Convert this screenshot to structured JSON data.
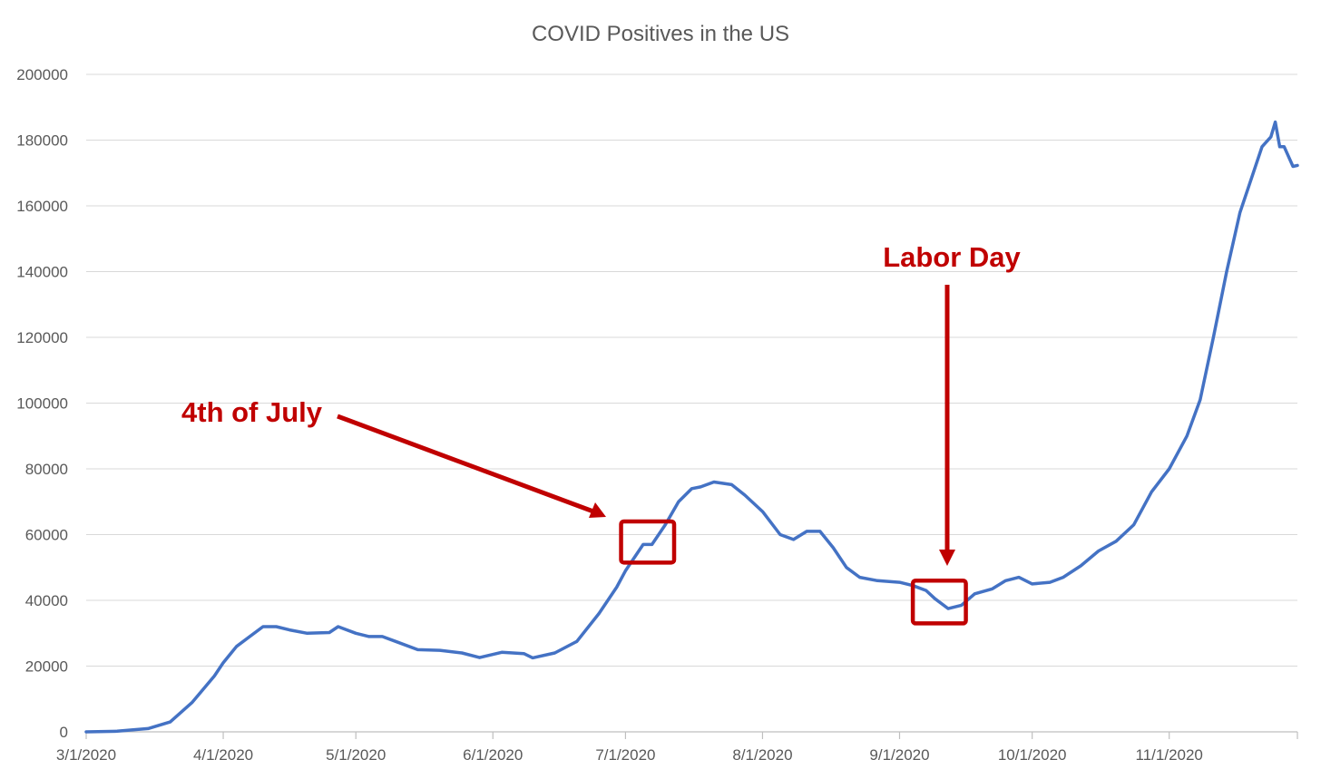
{
  "chart_data": {
    "type": "line",
    "title": "COVID Positives in the US",
    "xlabel": "",
    "ylabel": "",
    "ylim": [
      0,
      200000
    ],
    "yticks": [
      0,
      20000,
      40000,
      60000,
      80000,
      100000,
      120000,
      140000,
      160000,
      180000,
      200000
    ],
    "x_start": "3/1/2020",
    "x_end": "11/30/2020",
    "xtick_labels": [
      "3/1/2020",
      "4/1/2020",
      "5/1/2020",
      "6/1/2020",
      "7/1/2020",
      "8/1/2020",
      "9/1/2020",
      "10/1/2020",
      "11/1/2020"
    ],
    "grid": true,
    "legend": "none",
    "series_color": "#4472c4",
    "series": [
      {
        "points": [
          [
            "3/1/2020",
            0
          ],
          [
            "3/8/2020",
            200
          ],
          [
            "3/15/2020",
            1000
          ],
          [
            "3/20/2020",
            3000
          ],
          [
            "3/25/2020",
            9000
          ],
          [
            "3/30/2020",
            17000
          ],
          [
            "4/1/2020",
            21000
          ],
          [
            "4/4/2020",
            26000
          ],
          [
            "4/7/2020",
            29000
          ],
          [
            "4/10/2020",
            32000
          ],
          [
            "4/13/2020",
            32000
          ],
          [
            "4/16/2020",
            31000
          ],
          [
            "4/20/2020",
            30000
          ],
          [
            "4/25/2020",
            30200
          ],
          [
            "4/27/2020",
            32000
          ],
          [
            "5/1/2020",
            30000
          ],
          [
            "5/4/2020",
            29000
          ],
          [
            "5/7/2020",
            29000
          ],
          [
            "5/10/2020",
            27500
          ],
          [
            "5/15/2020",
            25000
          ],
          [
            "5/20/2020",
            24800
          ],
          [
            "5/25/2020",
            24000
          ],
          [
            "5/29/2020",
            22600
          ],
          [
            "6/3/2020",
            24200
          ],
          [
            "6/8/2020",
            23800
          ],
          [
            "6/10/2020",
            22500
          ],
          [
            "6/15/2020",
            24000
          ],
          [
            "6/20/2020",
            27500
          ],
          [
            "6/25/2020",
            36000
          ],
          [
            "6/29/2020",
            44000
          ],
          [
            "7/1/2020",
            49000
          ],
          [
            "7/5/2020",
            57000
          ],
          [
            "7/7/2020",
            57000
          ],
          [
            "7/10/2020",
            63000
          ],
          [
            "7/13/2020",
            70000
          ],
          [
            "7/16/2020",
            74000
          ],
          [
            "7/18/2020",
            74500
          ],
          [
            "7/21/2020",
            76000
          ],
          [
            "7/25/2020",
            75200
          ],
          [
            "7/28/2020",
            72000
          ],
          [
            "8/1/2020",
            67000
          ],
          [
            "8/5/2020",
            60000
          ],
          [
            "8/8/2020",
            58500
          ],
          [
            "8/11/2020",
            61000
          ],
          [
            "8/14/2020",
            61000
          ],
          [
            "8/17/2020",
            56000
          ],
          [
            "8/20/2020",
            50000
          ],
          [
            "8/23/2020",
            47000
          ],
          [
            "8/27/2020",
            46000
          ],
          [
            "9/1/2020",
            45500
          ],
          [
            "9/4/2020",
            44500
          ],
          [
            "9/7/2020",
            43000
          ],
          [
            "9/9/2020",
            40500
          ],
          [
            "9/12/2020",
            37500
          ],
          [
            "9/15/2020",
            38500
          ],
          [
            "9/18/2020",
            42000
          ],
          [
            "9/22/2020",
            43500
          ],
          [
            "9/25/2020",
            46000
          ],
          [
            "9/28/2020",
            47000
          ],
          [
            "10/1/2020",
            45000
          ],
          [
            "10/5/2020",
            45500
          ],
          [
            "10/8/2020",
            47000
          ],
          [
            "10/12/2020",
            50500
          ],
          [
            "10/16/2020",
            55000
          ],
          [
            "10/20/2020",
            58000
          ],
          [
            "10/24/2020",
            63000
          ],
          [
            "10/28/2020",
            73000
          ],
          [
            "11/1/2020",
            80000
          ],
          [
            "11/5/2020",
            90000
          ],
          [
            "11/8/2020",
            101000
          ],
          [
            "11/11/2020",
            120000
          ],
          [
            "11/14/2020",
            140000
          ],
          [
            "11/17/2020",
            158000
          ],
          [
            "11/20/2020",
            170000
          ],
          [
            "11/22/2020",
            178000
          ],
          [
            "11/24/2020",
            181000
          ],
          [
            "11/25/2020",
            185500
          ],
          [
            "11/26/2020",
            178000
          ],
          [
            "11/27/2020",
            178000
          ],
          [
            "11/29/2020",
            172000
          ],
          [
            "11/30/2020",
            172300
          ]
        ]
      }
    ],
    "annotation_color": "#c00000",
    "annotations": [
      {
        "text": "4th of July",
        "box": {
          "x0": "6/30/2020",
          "x1": "7/12/2020",
          "y0": 51500,
          "y1": 64000
        }
      },
      {
        "text": "Labor Day",
        "box": {
          "x0": "9/4/2020",
          "x1": "9/16/2020",
          "y0": 33000,
          "y1": 46000
        }
      }
    ]
  }
}
